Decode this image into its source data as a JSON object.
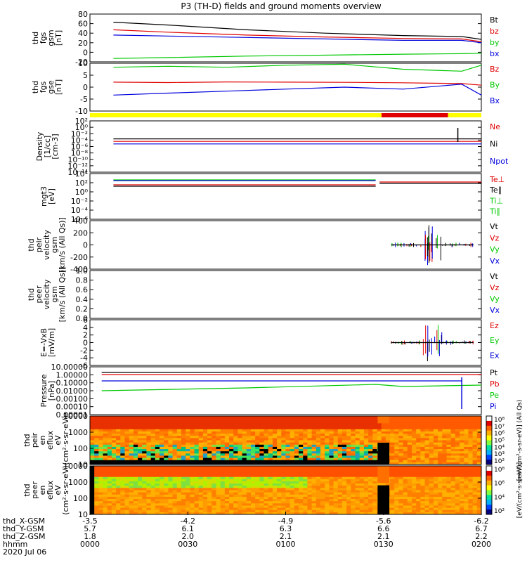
{
  "title": "P3 (TH-D) fields and ground moments overview",
  "colors": {
    "black": "#000000",
    "red": "#e00000",
    "green": "#00c800",
    "blue": "#0000dd",
    "yellow": "#ffff00",
    "barred": "#e00000"
  },
  "chart_data": [
    {
      "type": "line",
      "ylabel": [
        "thd",
        "fgs",
        "gsm",
        "[nT]"
      ],
      "yticks": [
        "80",
        "60",
        "40",
        "20",
        "0",
        "-20"
      ],
      "ylim": [
        -20,
        80
      ],
      "legend": [
        "Bt",
        "bz",
        "by",
        "bx"
      ],
      "series": [
        {
          "name": "Bt",
          "color": "#000000",
          "x": [
            0.06,
            0.2,
            0.4,
            0.6,
            0.8,
            0.95,
            1.0
          ],
          "y": [
            63,
            57,
            47,
            40,
            35,
            33,
            27
          ]
        },
        {
          "name": "bz",
          "color": "#e00000",
          "x": [
            0.06,
            0.2,
            0.4,
            0.6,
            0.8,
            0.95,
            1.0
          ],
          "y": [
            47,
            42,
            36,
            32,
            29,
            28,
            22
          ]
        },
        {
          "name": "by",
          "color": "#00c800",
          "x": [
            0.06,
            0.2,
            0.4,
            0.6,
            0.8,
            0.95,
            1.0
          ],
          "y": [
            -13,
            -11,
            -8,
            -6,
            -4,
            -3,
            -2
          ]
        },
        {
          "name": "bx",
          "color": "#0000dd",
          "x": [
            0.06,
            0.2,
            0.4,
            0.6,
            0.8,
            0.95,
            1.0
          ],
          "y": [
            36,
            34,
            31,
            28,
            25,
            25,
            20
          ]
        }
      ]
    },
    {
      "type": "line",
      "ylabel": [
        "thd",
        "fgs",
        "gse",
        "[nT]"
      ],
      "yticks": [
        "10",
        "5",
        "0",
        "-5",
        "-10"
      ],
      "ylim": [
        -14,
        10
      ],
      "legend": [
        "Bz",
        "By",
        "Bx"
      ],
      "series": [
        {
          "name": "Bz",
          "color": "#00c800",
          "x": [
            0.06,
            0.2,
            0.35,
            0.5,
            0.65,
            0.8,
            0.95,
            1.0
          ],
          "y": [
            8,
            8.5,
            8,
            9,
            9.5,
            7,
            6,
            9
          ]
        },
        {
          "name": "By",
          "color": "#e00000",
          "x": [
            0.06,
            0.2,
            0.35,
            0.5,
            0.65,
            0.8,
            0.95,
            1.0
          ],
          "y": [
            0.5,
            0.3,
            0.6,
            0.5,
            0.4,
            0.2,
            -0.2,
            -1
          ]
        },
        {
          "name": "Bx",
          "color": "#0000dd",
          "x": [
            0.06,
            0.2,
            0.35,
            0.5,
            0.65,
            0.8,
            0.95,
            1.0
          ],
          "y": [
            -6,
            -5,
            -4,
            -3,
            -2,
            -3,
            -0.5,
            -6
          ]
        }
      ]
    },
    {
      "type": "line",
      "ylabel": [
        "Density",
        "[1/cc]",
        "[cm-3]"
      ],
      "yticks": [
        "10²",
        "10⁰",
        "10⁻²",
        "10⁻⁴",
        "10⁻⁶",
        "10⁻⁸",
        "10⁻¹⁰",
        "10⁻¹²",
        "10⁻¹⁴"
      ],
      "legend": [
        "Ne",
        "Ni",
        "Npot"
      ],
      "series": [
        {
          "name": "Ne",
          "color": "#e00000",
          "x": [
            0.06,
            1.0
          ],
          "y": [
            0.2,
            0.2
          ]
        },
        {
          "name": "Ni",
          "color": "#000000",
          "x": [
            0.06,
            1.0
          ],
          "y": [
            0.3,
            0.3
          ]
        },
        {
          "name": "Npot",
          "color": "#0000dd",
          "x": [
            0.06,
            1.0
          ],
          "y": [
            0.1,
            0.1
          ]
        }
      ]
    },
    {
      "type": "line",
      "ylabel": [
        "mgt3",
        "[eV]"
      ],
      "yticks": [
        "10⁴",
        "10²",
        "10⁰",
        "10⁻²",
        "10⁻⁴",
        "10⁻⁶"
      ],
      "legend": [
        "Te⊥",
        "Te∥",
        "Ti⊥",
        "Ti∥"
      ]
    },
    {
      "type": "scatter",
      "ylabel": [
        "thd",
        "peir",
        "velocity",
        "gsm",
        "[km/s (All Qs)]"
      ],
      "yticks": [
        "400",
        "200",
        "0",
        "-200",
        "-400"
      ],
      "ylim": [
        -400,
        400
      ],
      "legend": [
        "Vt",
        "Vz",
        "Vy",
        "Vx"
      ]
    },
    {
      "type": "line",
      "ylabel": [
        "thd",
        "peer",
        "velocity",
        "gsm",
        "[km/s (All Qs)]"
      ],
      "yticks": [
        "1.0",
        "0.8",
        "0.6",
        "0.4",
        "0.2",
        "0.0"
      ],
      "ylim": [
        0,
        1
      ],
      "legend": [
        "Vt",
        "Vz",
        "Vy",
        "Vx"
      ]
    },
    {
      "type": "scatter",
      "ylabel": [
        "E=-VxB",
        "[mV/m]"
      ],
      "yticks": [
        "6",
        "4",
        "2",
        "0",
        "-2",
        "-4",
        "-6"
      ],
      "ylim": [
        -6,
        6
      ],
      "legend": [
        "Ez",
        "Ey",
        "Ex"
      ]
    },
    {
      "type": "line",
      "ylabel": [
        "Pressure",
        "[nPa]"
      ],
      "yticks": [
        "10.00000",
        "1.00000",
        "0.10000",
        "0.01000",
        "0.00100",
        "0.00010",
        "0.00001"
      ],
      "legend": [
        "Pt",
        "Pb",
        "Pe",
        "Pi"
      ]
    },
    {
      "type": "heatmap",
      "ylabel": [
        "thd",
        "peir",
        "en",
        "eflux",
        "eV",
        "(cm²·s·sr·eV)"
      ],
      "yticks": [
        "10000",
        "1000",
        "100",
        "10"
      ],
      "colorbar": [
        "10⁸",
        "10⁷",
        "10⁶",
        "10⁵",
        "10⁴",
        "10³",
        "10²"
      ],
      "colorbar_label": "[eV/(cm²-s-sr-eV)] (All Qs)"
    },
    {
      "type": "heatmap",
      "ylabel": [
        "thd",
        "peer",
        "en",
        "eflux",
        "eV",
        "(cm²·s·sr·eV)"
      ],
      "yticks": [
        "10000",
        "1000",
        "100",
        "10"
      ],
      "colorbar": [
        "10⁸",
        "10⁶",
        "10⁴",
        "10²"
      ],
      "colorbar_label": "[eV/(cm²·s·sr·eV)]"
    }
  ],
  "xaxis": {
    "row_labels": [
      "thd_X-GSM",
      "thd_Y-GSM",
      "thd_Z-GSM",
      "hhmm",
      "2020 Jul 06"
    ],
    "columns": [
      {
        "x": "-3.5",
        "y": "5.7",
        "z": "1.8",
        "t": "0000"
      },
      {
        "x": "-4.2",
        "y": "6.1",
        "z": "2.0",
        "t": "0030"
      },
      {
        "x": "-4.9",
        "y": "6.3",
        "z": "2.1",
        "t": "0100"
      },
      {
        "x": "-5.6",
        "y": "6.6",
        "z": "2.1",
        "t": "0130"
      },
      {
        "x": "-6.2",
        "y": "6.7",
        "z": "2.2",
        "t": "0200"
      }
    ]
  }
}
